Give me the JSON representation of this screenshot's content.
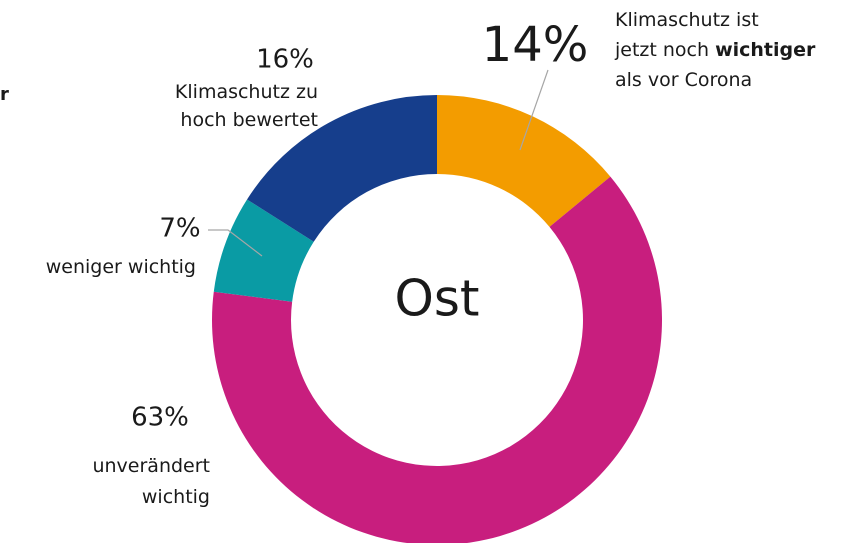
{
  "chart_data": {
    "type": "donut",
    "center_label": "Ost",
    "fragment": "r",
    "categories": [
      [
        [
          {
            "text": "Klimaschutz ist"
          }
        ],
        [
          {
            "text": "jetzt noch "
          },
          {
            "text": "wichtiger",
            "bold": true
          }
        ],
        [
          {
            "text": "als vor Corona"
          }
        ]
      ],
      [
        [
          {
            "text": "unverändert"
          }
        ],
        [
          {
            "text": "wichtig"
          }
        ]
      ],
      [
        [
          {
            "text": "weniger wichtig"
          }
        ]
      ],
      [
        [
          {
            "text": "Klimaschutz zu"
          }
        ],
        [
          {
            "text": "hoch bewertet"
          }
        ]
      ]
    ],
    "values": [
      14,
      63,
      7,
      16
    ],
    "value_labels": [
      "14%",
      "63%",
      "7%",
      "16%"
    ],
    "colors": [
      "#f39c00",
      "#c81e7e",
      "#0a9ba4",
      "#163e8c"
    ]
  }
}
